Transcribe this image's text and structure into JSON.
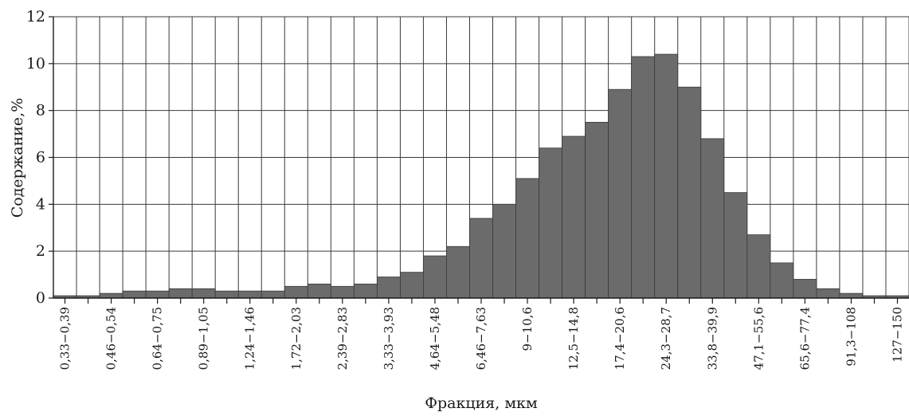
{
  "chart_data": {
    "type": "bar",
    "xlabel": "Фракция, мкм",
    "ylabel": "Содержание,%",
    "ylim": [
      0,
      12
    ],
    "yticks": [
      "0",
      "2",
      "4",
      "6",
      "8",
      "10",
      "12"
    ],
    "grid": "vertical lines at every bin boundary, horizontal lines at every y tick",
    "bar_color": "#6b6b6b",
    "categories": [
      "0,33−0,39",
      "",
      "0,46−0,54",
      "",
      "0,64−0,75",
      "",
      "0,89−1,05",
      "",
      "1,24−1,46",
      "",
      "1,72−2,03",
      "",
      "2,39−2,83",
      "",
      "3,33−3,93",
      "",
      "4,64−5,48",
      "",
      "6,46−7,63",
      "",
      "9−10,6",
      "",
      "12,5−14,8",
      "",
      "17,4−20,6",
      "",
      "24,3−28,7",
      "",
      "33,8−39,9",
      "",
      "47,1−55,6",
      "",
      "65,6−77,4",
      "",
      "91,3−108",
      "",
      "127−150"
    ],
    "values": [
      0.1,
      0.1,
      0.2,
      0.3,
      0.3,
      0.4,
      0.4,
      0.3,
      0.3,
      0.3,
      0.5,
      0.6,
      0.5,
      0.6,
      0.9,
      1.1,
      1.8,
      2.2,
      3.4,
      4.0,
      5.1,
      6.4,
      6.9,
      7.5,
      8.9,
      10.3,
      10.4,
      9.0,
      6.8,
      4.5,
      2.7,
      1.5,
      0.8,
      0.4,
      0.2,
      0.1,
      0.1
    ]
  }
}
